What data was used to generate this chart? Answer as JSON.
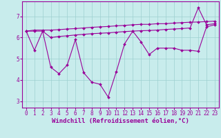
{
  "xlabel": "Windchill (Refroidissement éolien,°C)",
  "background_color": "#c8ecec",
  "line_color": "#990099",
  "x": [
    0,
    1,
    2,
    3,
    4,
    5,
    6,
    7,
    8,
    9,
    10,
    11,
    12,
    13,
    14,
    15,
    16,
    17,
    18,
    19,
    20,
    21,
    22,
    23
  ],
  "line1": [
    6.3,
    5.4,
    6.3,
    4.6,
    4.3,
    4.7,
    5.9,
    4.35,
    3.9,
    3.8,
    3.2,
    4.4,
    5.7,
    6.3,
    5.8,
    5.2,
    5.5,
    5.5,
    5.5,
    5.4,
    5.4,
    5.35,
    6.5,
    6.6
  ],
  "line2": [
    6.3,
    6.35,
    6.35,
    6.35,
    6.37,
    6.4,
    6.42,
    6.45,
    6.48,
    6.5,
    6.52,
    6.55,
    6.57,
    6.6,
    6.62,
    6.62,
    6.65,
    6.65,
    6.68,
    6.7,
    6.72,
    6.73,
    6.75,
    6.77
  ],
  "line3": [
    6.3,
    6.3,
    6.3,
    6.0,
    6.05,
    6.08,
    6.12,
    6.15,
    6.18,
    6.2,
    6.22,
    6.25,
    6.28,
    6.3,
    6.32,
    6.33,
    6.35,
    6.38,
    6.4,
    6.42,
    6.45,
    7.4,
    6.6,
    6.65
  ],
  "ylim": [
    2.7,
    7.7
  ],
  "yticks": [
    3,
    4,
    5,
    6,
    7
  ],
  "xlim": [
    -0.5,
    23.5
  ],
  "grid_color": "#9dd0d0",
  "marker": "D",
  "marker_size": 2.0,
  "line_width": 0.8,
  "tick_fontsize": 5.5,
  "xlabel_fontsize": 6.5
}
